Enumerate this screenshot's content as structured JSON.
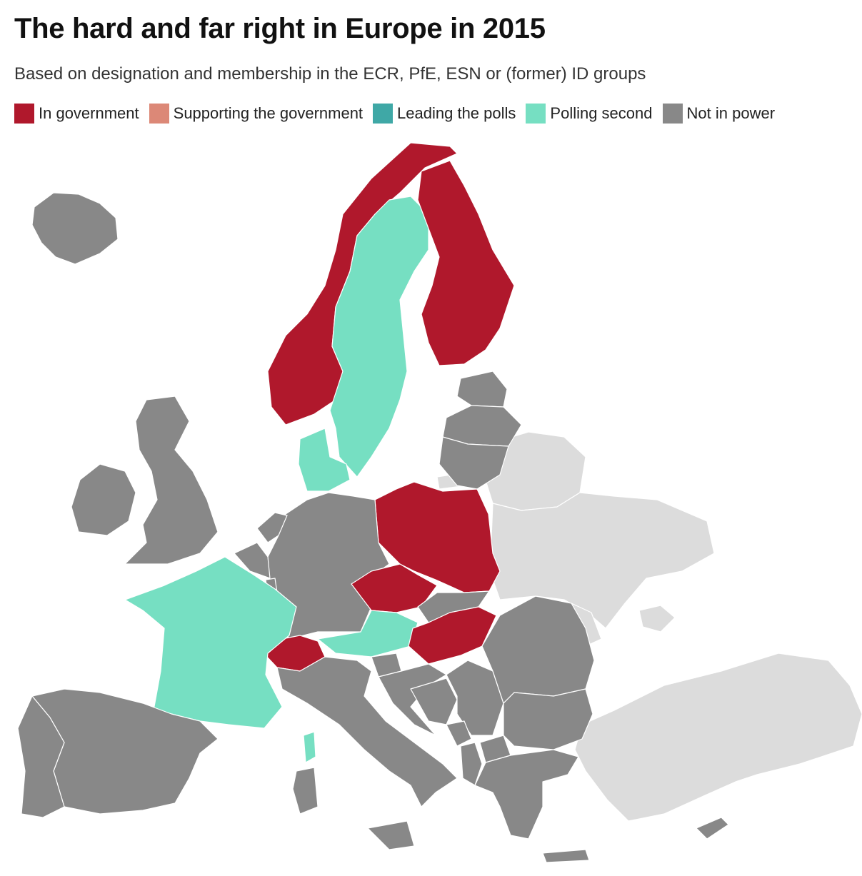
{
  "header": {
    "title": "The hard and far right in Europe in 2015",
    "subtitle": "Based on designation and membership in the ECR, PfE, ESN or (former) ID groups"
  },
  "legend": [
    {
      "label": "In government",
      "color": "#b0182c"
    },
    {
      "label": "Supporting the government",
      "color": "#dc8877"
    },
    {
      "label": "Leading the polls",
      "color": "#3fa8a6"
    },
    {
      "label": "Polling second",
      "color": "#76dfc2"
    },
    {
      "label": "Not in power",
      "color": "#888888"
    }
  ],
  "colors": {
    "not_eu": "#dcdcdc"
  },
  "countries": {
    "iceland": "not-in-power",
    "ireland": "not-in-power",
    "united-kingdom": "not-in-power",
    "norway": "in-government",
    "sweden": "polling-second",
    "finland": "in-government",
    "denmark": "polling-second",
    "estonia": "not-in-power",
    "latvia": "not-in-power",
    "lithuania": "not-in-power",
    "poland": "in-government",
    "germany": "not-in-power",
    "netherlands": "not-in-power",
    "belgium": "not-in-power",
    "luxembourg": "not-in-power",
    "france": "polling-second",
    "corsica": "polling-second",
    "switzerland": "in-government",
    "austria": "polling-second",
    "czechia": "in-government",
    "slovakia": "not-in-power",
    "hungary": "in-government",
    "spain": "not-in-power",
    "portugal": "not-in-power",
    "italy": "not-in-power",
    "sardinia": "not-in-power",
    "sicily": "not-in-power",
    "slovenia": "not-in-power",
    "croatia": "not-in-power",
    "bosnia": "not-in-power",
    "serbia": "not-in-power",
    "montenegro": "not-in-power",
    "albania": "not-in-power",
    "north-macedonia": "not-in-power",
    "romania": "not-in-power",
    "bulgaria": "not-in-power",
    "greece": "not-in-power",
    "crete": "not-in-power",
    "cyprus": "not-in-power",
    "belarus": "not-eu",
    "ukraine": "not-eu",
    "moldova": "not-eu",
    "turkey": "not-eu",
    "kaliningrad": "not-eu"
  }
}
